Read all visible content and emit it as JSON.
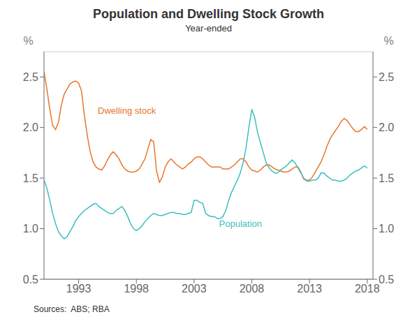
{
  "chart_data": {
    "type": "line",
    "title": "Population and Dwelling Stock Growth",
    "subtitle": "Year-ended",
    "source": "Sources:  ABS; RBA",
    "ylabel": "%",
    "y2label": "%",
    "xlim": [
      1990.0,
      2018.5
    ],
    "xticks": [
      1993,
      1998,
      2003,
      2008,
      2013,
      2018
    ],
    "ylim": [
      0.5,
      2.75
    ],
    "yticks": [
      0.5,
      {
        "value": 1.0,
        "label": "1.0"
      },
      1.5,
      {
        "value": 2.0,
        "label": "2.0"
      },
      2.5
    ],
    "y2lim": [
      0.5,
      2.75
    ],
    "y2ticks": [
      0.5,
      {
        "value": 1.0,
        "label": "1.0"
      },
      1.5,
      {
        "value": 2.0,
        "label": "2.0"
      },
      2.5
    ],
    "grid": "y",
    "annotations": [
      {
        "text": "Dwelling stock",
        "x": 1994.3,
        "y": 2.17,
        "color": "#E8762C"
      },
      {
        "text": "Population",
        "x": 2004.8,
        "y": 1.05,
        "color": "#3DBFBF"
      }
    ],
    "x": [
      1990.0,
      1990.25,
      1990.5,
      1990.75,
      1991.0,
      1991.25,
      1991.5,
      1991.75,
      1992.0,
      1992.25,
      1992.5,
      1992.75,
      1993.0,
      1993.25,
      1993.5,
      1993.75,
      1994.0,
      1994.25,
      1994.5,
      1994.75,
      1995.0,
      1995.25,
      1995.5,
      1995.75,
      1996.0,
      1996.25,
      1996.5,
      1996.75,
      1997.0,
      1997.25,
      1997.5,
      1997.75,
      1998.0,
      1998.25,
      1998.5,
      1998.75,
      1999.0,
      1999.25,
      1999.5,
      1999.75,
      2000.0,
      2000.25,
      2000.5,
      2000.75,
      2001.0,
      2001.25,
      2001.5,
      2001.75,
      2002.0,
      2002.25,
      2002.5,
      2002.75,
      2003.0,
      2003.25,
      2003.5,
      2003.75,
      2004.0,
      2004.25,
      2004.5,
      2004.75,
      2005.0,
      2005.25,
      2005.5,
      2005.75,
      2006.0,
      2006.25,
      2006.5,
      2006.75,
      2007.0,
      2007.25,
      2007.5,
      2007.75,
      2008.0,
      2008.25,
      2008.5,
      2008.75,
      2009.0,
      2009.25,
      2009.5,
      2009.75,
      2010.0,
      2010.25,
      2010.5,
      2010.75,
      2011.0,
      2011.25,
      2011.5,
      2011.75,
      2012.0,
      2012.25,
      2012.5,
      2012.75,
      2013.0,
      2013.25,
      2013.5,
      2013.75,
      2014.0,
      2014.25,
      2014.5,
      2014.75,
      2015.0,
      2015.25,
      2015.5,
      2015.75,
      2016.0,
      2016.25,
      2016.5,
      2016.75,
      2017.0,
      2017.25,
      2017.5,
      2017.75,
      2018.0
    ],
    "series": [
      {
        "name": "Dwelling stock",
        "color": "#E8762C",
        "values": [
          2.55,
          2.38,
          2.18,
          2.02,
          1.98,
          2.05,
          2.22,
          2.33,
          2.38,
          2.43,
          2.45,
          2.46,
          2.44,
          2.36,
          2.12,
          1.92,
          1.76,
          1.66,
          1.61,
          1.59,
          1.58,
          1.62,
          1.68,
          1.73,
          1.76,
          1.73,
          1.69,
          1.63,
          1.59,
          1.57,
          1.56,
          1.56,
          1.57,
          1.59,
          1.64,
          1.69,
          1.79,
          1.88,
          1.86,
          1.57,
          1.46,
          1.51,
          1.61,
          1.66,
          1.69,
          1.66,
          1.63,
          1.61,
          1.59,
          1.61,
          1.64,
          1.66,
          1.69,
          1.71,
          1.71,
          1.69,
          1.66,
          1.63,
          1.61,
          1.61,
          1.61,
          1.61,
          1.59,
          1.59,
          1.59,
          1.61,
          1.63,
          1.66,
          1.69,
          1.69,
          1.66,
          1.61,
          1.58,
          1.57,
          1.56,
          1.58,
          1.61,
          1.63,
          1.63,
          1.61,
          1.59,
          1.58,
          1.57,
          1.56,
          1.56,
          1.57,
          1.59,
          1.61,
          1.61,
          1.56,
          1.49,
          1.48,
          1.48,
          1.51,
          1.56,
          1.61,
          1.66,
          1.73,
          1.81,
          1.88,
          1.93,
          1.97,
          2.01,
          2.06,
          2.09,
          2.07,
          2.03,
          1.99,
          1.96,
          1.96,
          1.98,
          2.01,
          1.98
        ]
      },
      {
        "name": "Population",
        "color": "#3DBFBF",
        "values": [
          1.48,
          1.4,
          1.28,
          1.15,
          1.05,
          0.97,
          0.93,
          0.9,
          0.92,
          0.97,
          1.02,
          1.08,
          1.12,
          1.15,
          1.18,
          1.2,
          1.22,
          1.24,
          1.25,
          1.22,
          1.2,
          1.18,
          1.16,
          1.15,
          1.15,
          1.18,
          1.2,
          1.22,
          1.18,
          1.12,
          1.05,
          1.0,
          0.98,
          1.0,
          1.03,
          1.07,
          1.1,
          1.13,
          1.15,
          1.14,
          1.13,
          1.13,
          1.14,
          1.15,
          1.16,
          1.16,
          1.15,
          1.15,
          1.14,
          1.14,
          1.15,
          1.16,
          1.28,
          1.28,
          1.26,
          1.25,
          1.15,
          1.13,
          1.12,
          1.12,
          1.1,
          1.1,
          1.12,
          1.18,
          1.28,
          1.36,
          1.42,
          1.48,
          1.55,
          1.65,
          1.8,
          2.0,
          2.18,
          2.1,
          1.95,
          1.85,
          1.75,
          1.65,
          1.6,
          1.57,
          1.55,
          1.55,
          1.58,
          1.6,
          1.62,
          1.65,
          1.68,
          1.65,
          1.6,
          1.55,
          1.5,
          1.47,
          1.47,
          1.48,
          1.48,
          1.5,
          1.55,
          1.55,
          1.52,
          1.5,
          1.48,
          1.48,
          1.47,
          1.47,
          1.48,
          1.5,
          1.53,
          1.55,
          1.57,
          1.58,
          1.6,
          1.62,
          1.6
        ]
      }
    ]
  }
}
